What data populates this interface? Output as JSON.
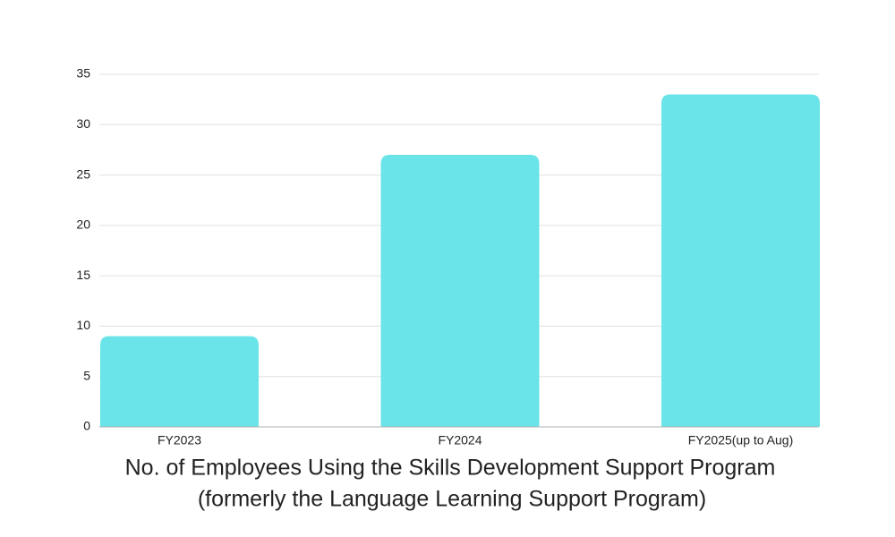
{
  "chart_data": {
    "type": "bar",
    "title": [
      "No. of Employees Using the Skills Development Support Program",
      "(formerly the Language Learning Support Program)"
    ],
    "categories": [
      "FY2023",
      "FY2024",
      "FY2025(up to Aug)"
    ],
    "values": [
      9,
      27,
      33
    ],
    "color": "#6ae4e8",
    "ylim": [
      0,
      35
    ],
    "yticks": [
      0,
      5,
      10,
      15,
      20,
      25,
      30,
      35
    ],
    "grid": true
  }
}
